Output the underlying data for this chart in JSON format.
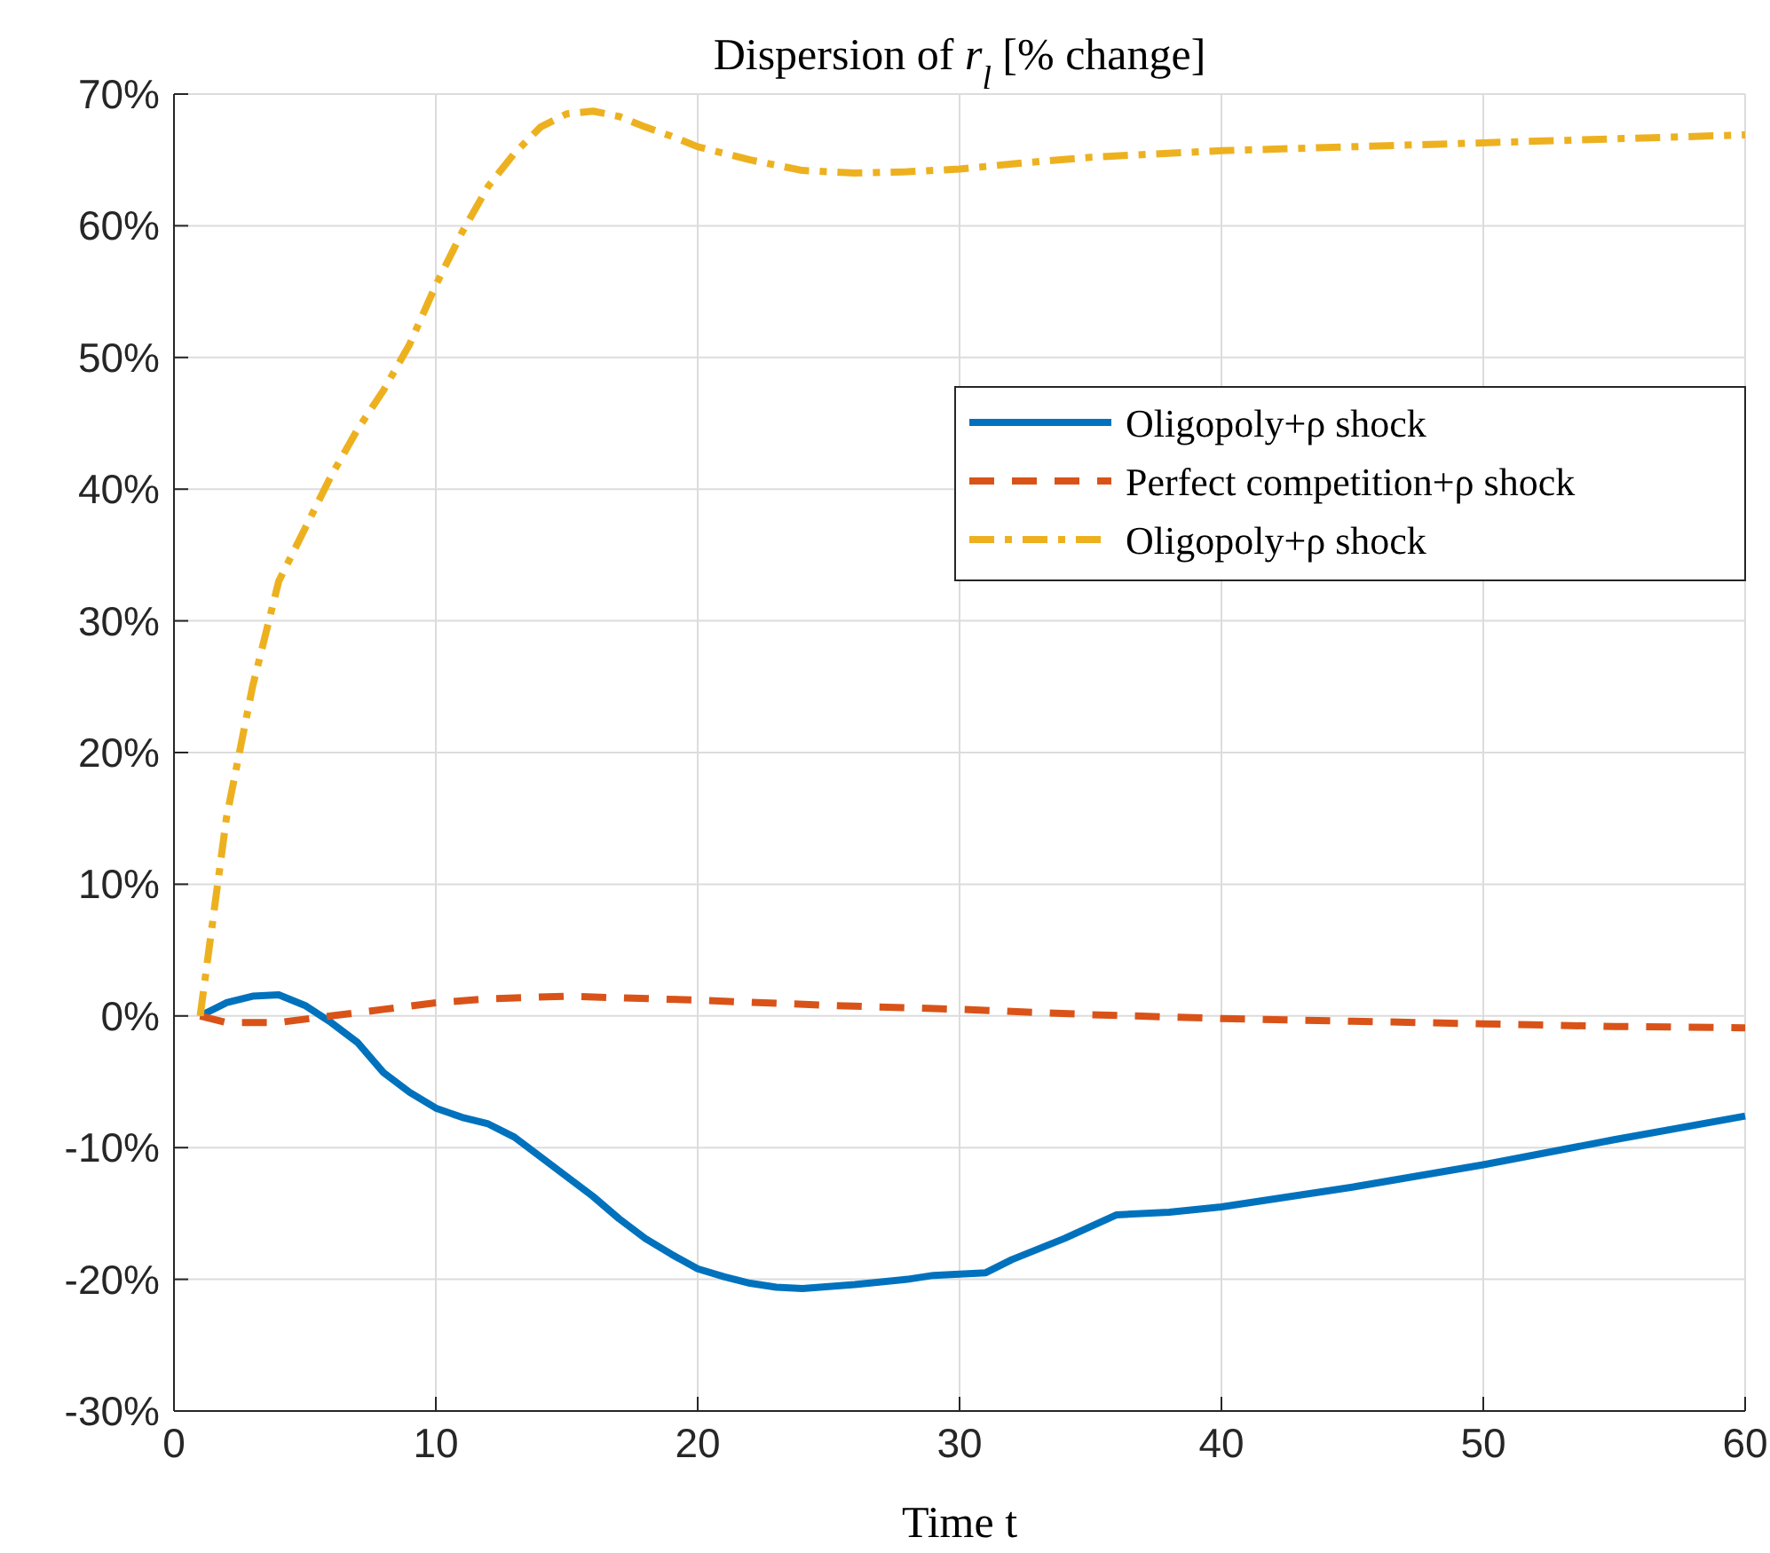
{
  "chart_data": {
    "type": "line",
    "title": "Dispersion of $_{}$r$_{l}$ [% change]",
    "xlabel": "Time t",
    "xlim": [
      0,
      60
    ],
    "xticks": [
      0,
      10,
      20,
      30,
      40,
      50,
      60
    ],
    "ylim": [
      -30,
      70
    ],
    "yticks": [
      {
        "value": -30,
        "label": "-30%"
      },
      {
        "value": -20,
        "label": "-20%"
      },
      {
        "value": -10,
        "label": "-10%"
      },
      {
        "value": 0,
        "label": "0%"
      },
      {
        "value": 10,
        "label": "10%"
      },
      {
        "value": 20,
        "label": "20%"
      },
      {
        "value": 30,
        "label": "30%"
      },
      {
        "value": 40,
        "label": "40%"
      },
      {
        "value": 50,
        "label": "50%"
      },
      {
        "value": 60,
        "label": "60%"
      },
      {
        "value": 70,
        "label": "70%"
      }
    ],
    "grid": true,
    "legend": "right",
    "series": [
      {
        "name": "Oligopoly+ρ shock",
        "color": "#0072bd",
        "line_style": "solid",
        "x": [
          1,
          2,
          3,
          4,
          5,
          6,
          7,
          8,
          9,
          10,
          11,
          12,
          13,
          14,
          15,
          16,
          17,
          18,
          19,
          20,
          21,
          22,
          23,
          24,
          26,
          28,
          29,
          31,
          32,
          34,
          36,
          38,
          40,
          45,
          50,
          55,
          60
        ],
        "values": [
          0,
          1,
          1.5,
          1.6,
          0.8,
          -0.5,
          -2,
          -4.3,
          -5.8,
          -7,
          -7.7,
          -8.2,
          -9.2,
          -10.7,
          -12.2,
          -13.7,
          -15.4,
          -16.9,
          -18.1,
          -19.2,
          -19.8,
          -20.3,
          -20.6,
          -20.7,
          -20.4,
          -20,
          -19.7,
          -19.5,
          -18.5,
          -16.9,
          -15.1,
          -14.9,
          -14.5,
          -13,
          -11.3,
          -9.4,
          -7.6
        ]
      },
      {
        "name": "Perfect competition+ρ shock",
        "color": "#d95319",
        "line_style": "dashed",
        "x": [
          1,
          2,
          4,
          6,
          8,
          10,
          12,
          15,
          20,
          25,
          30,
          35,
          40,
          45,
          50,
          55,
          60
        ],
        "values": [
          0,
          -0.5,
          -0.5,
          0,
          0.5,
          1,
          1.3,
          1.5,
          1.2,
          0.8,
          0.5,
          0.1,
          -0.2,
          -0.4,
          -0.6,
          -0.8,
          -0.9
        ]
      },
      {
        "name": "Oligopoly+ρ shock",
        "color": "#edb120",
        "line_style": "dashdot",
        "x": [
          1,
          2,
          3,
          4,
          5,
          6,
          7,
          8,
          9,
          10,
          11,
          12,
          13,
          14,
          15,
          16,
          17,
          18,
          19,
          20,
          22,
          24,
          26,
          28,
          30,
          32,
          35,
          40,
          45,
          50,
          55,
          60
        ],
        "values": [
          0,
          15,
          25,
          33,
          37,
          41,
          44.5,
          47.5,
          51,
          55.5,
          59.5,
          63,
          65.5,
          67.5,
          68.5,
          68.7,
          68.3,
          67.5,
          66.8,
          66,
          65,
          64.2,
          64,
          64.1,
          64.3,
          64.7,
          65.2,
          65.7,
          66,
          66.3,
          66.6,
          66.9
        ]
      }
    ]
  }
}
